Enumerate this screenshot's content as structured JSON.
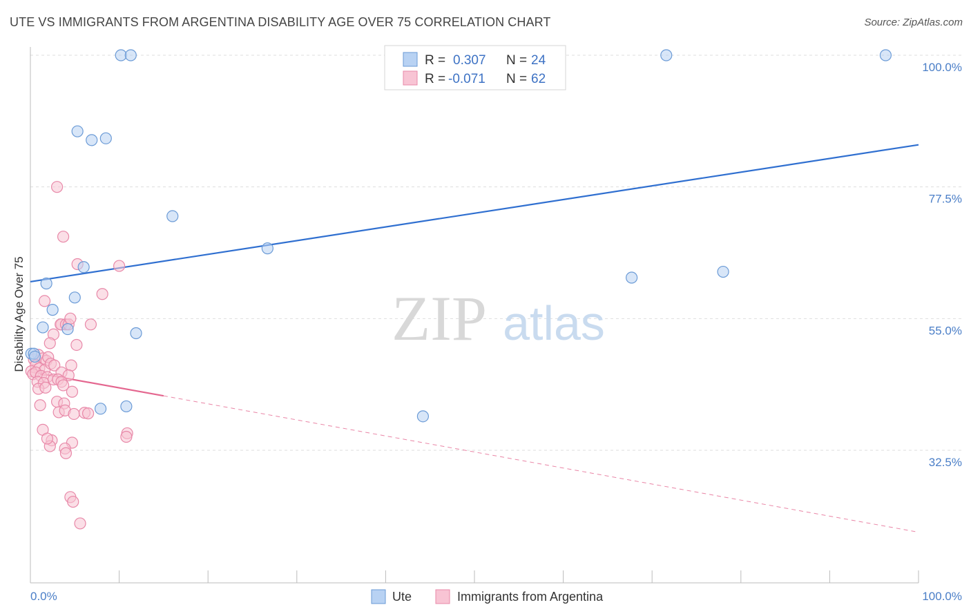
{
  "title": "UTE VS IMMIGRANTS FROM ARGENTINA DISABILITY AGE OVER 75 CORRELATION CHART",
  "source": "Source: ZipAtlas.com",
  "watermark": {
    "zip": "ZIP",
    "atlas": "atlas"
  },
  "colors": {
    "ute_fill": "#b8d2f3",
    "ute_stroke": "#6a9ad6",
    "ute_line": "#2f6fd0",
    "arg_fill": "#f8c4d4",
    "arg_stroke": "#e888a8",
    "arg_line": "#e4668f",
    "grid": "#dddddd"
  },
  "legend": {
    "rows": [
      {
        "r_label": "R =",
        "r_value": "0.307",
        "n_label": "N =",
        "n_value": "24"
      },
      {
        "r_label": "R =",
        "r_value": "-0.071",
        "n_label": "N =",
        "n_value": "62"
      }
    ]
  },
  "bottom_legend": [
    "Ute",
    "Immigrants from Argentina"
  ],
  "chart_data": {
    "type": "scatter",
    "xlabel": "",
    "ylabel": "Disability Age Over 75",
    "xlim": [
      0,
      100
    ],
    "ylim": [
      10,
      102
    ],
    "x_tick_labels": [
      "0.0%",
      "100.0%"
    ],
    "y_ticks": [
      {
        "value": 32.5,
        "label": "32.5%"
      },
      {
        "value": 55.0,
        "label": "55.0%"
      },
      {
        "value": 77.5,
        "label": "77.5%"
      },
      {
        "value": 100.0,
        "label": "100.0%"
      }
    ],
    "series": [
      {
        "name": "Ute",
        "points": [
          [
            10.2,
            100.0
          ],
          [
            11.3,
            100.0
          ],
          [
            71.6,
            100.0
          ],
          [
            96.3,
            100.0
          ],
          [
            5.3,
            87.0
          ],
          [
            6.9,
            85.5
          ],
          [
            8.5,
            85.8
          ],
          [
            16.0,
            72.5
          ],
          [
            26.7,
            67.0
          ],
          [
            6.0,
            63.8
          ],
          [
            1.8,
            61.0
          ],
          [
            5.0,
            58.6
          ],
          [
            2.5,
            56.5
          ],
          [
            1.4,
            53.5
          ],
          [
            4.2,
            53.2
          ],
          [
            11.9,
            52.5
          ],
          [
            0.1,
            49.0
          ],
          [
            0.4,
            49.0
          ],
          [
            0.5,
            48.5
          ],
          [
            7.9,
            39.6
          ],
          [
            10.8,
            40.0
          ],
          [
            44.2,
            38.3
          ],
          [
            67.7,
            62.0
          ],
          [
            78.0,
            63.0
          ]
        ],
        "trend": [
          [
            0,
            61.3
          ],
          [
            100,
            84.7
          ]
        ]
      },
      {
        "name": "Immigrants from Argentina",
        "points": [
          [
            3.0,
            77.5
          ],
          [
            3.7,
            69.0
          ],
          [
            5.3,
            64.3
          ],
          [
            10.0,
            64.0
          ],
          [
            8.1,
            59.2
          ],
          [
            1.6,
            58.0
          ],
          [
            3.5,
            54.0
          ],
          [
            3.4,
            54.0
          ],
          [
            4.0,
            54.0
          ],
          [
            4.3,
            54.0
          ],
          [
            6.8,
            54.0
          ],
          [
            4.5,
            55.0
          ],
          [
            2.6,
            52.3
          ],
          [
            2.2,
            50.8
          ],
          [
            5.2,
            50.5
          ],
          [
            0.4,
            48.0
          ],
          [
            0.9,
            48.8
          ],
          [
            1.4,
            48.2
          ],
          [
            1.8,
            47.8
          ],
          [
            2.0,
            48.4
          ],
          [
            0.6,
            47.0
          ],
          [
            1.0,
            46.5
          ],
          [
            1.6,
            46.2
          ],
          [
            2.3,
            47.3
          ],
          [
            2.7,
            47.0
          ],
          [
            4.6,
            47.0
          ],
          [
            0.1,
            46.0
          ],
          [
            0.3,
            45.5
          ],
          [
            0.6,
            45.8
          ],
          [
            1.2,
            45.2
          ],
          [
            1.9,
            45.0
          ],
          [
            3.5,
            45.8
          ],
          [
            4.3,
            45.3
          ],
          [
            0.8,
            44.2
          ],
          [
            1.5,
            44.0
          ],
          [
            2.6,
            44.6
          ],
          [
            3.1,
            44.6
          ],
          [
            3.5,
            44.2
          ],
          [
            3.7,
            43.6
          ],
          [
            0.9,
            43.0
          ],
          [
            1.7,
            43.2
          ],
          [
            4.7,
            42.5
          ],
          [
            3.0,
            40.8
          ],
          [
            3.8,
            40.5
          ],
          [
            1.1,
            40.2
          ],
          [
            3.2,
            39.0
          ],
          [
            3.9,
            39.3
          ],
          [
            4.9,
            38.7
          ],
          [
            6.1,
            38.9
          ],
          [
            6.5,
            38.8
          ],
          [
            1.4,
            36.0
          ],
          [
            10.9,
            35.4
          ],
          [
            10.8,
            34.8
          ],
          [
            2.4,
            34.2
          ],
          [
            4.7,
            33.8
          ],
          [
            2.2,
            33.2
          ],
          [
            3.9,
            32.8
          ],
          [
            4.0,
            32.0
          ],
          [
            4.5,
            24.5
          ],
          [
            4.8,
            23.7
          ],
          [
            5.6,
            20.0
          ],
          [
            1.9,
            34.5
          ]
        ],
        "trend": [
          [
            0,
            45.9
          ],
          [
            15,
            41.8
          ]
        ],
        "trend_extension": [
          [
            15,
            41.8
          ],
          [
            100,
            18.5
          ]
        ]
      }
    ]
  }
}
